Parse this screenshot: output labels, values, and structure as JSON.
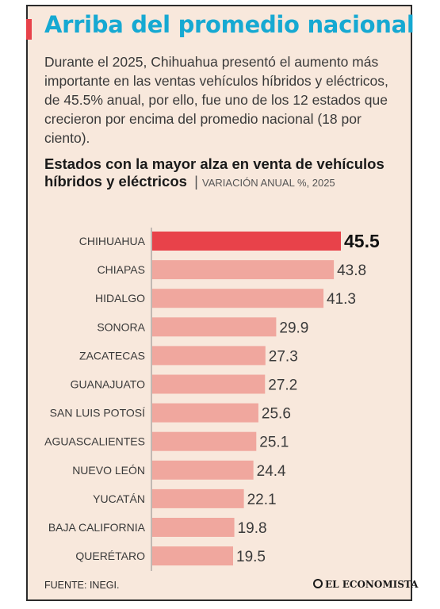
{
  "header": {
    "title": "Arriba del promedio nacional",
    "intro": "Durante el 2025, Chihuahua presentó el aumento más importante en las ventas vehículos híbridos y eléctricos, de 45.5% anual, por ello, fue uno de los 12 estados que crecieron por encima del promedio nacional (18 por ciento)."
  },
  "subtitle": {
    "main": "Estados con la mayor alza en venta de vehículos híbridos y eléctricos",
    "separator": "|",
    "unit": "VARIACIÓN ANUAL %, 2025"
  },
  "footer": {
    "source": "FUENTE: INEGI.",
    "brand": "EL ECONOMISTA"
  },
  "colors": {
    "background": "#f8e8dc",
    "title": "#16a9d2",
    "accent": "#e8424a",
    "bar_highlight": "#e8424a",
    "bar": "#f0a79e"
  },
  "chart_data": {
    "type": "bar",
    "orientation": "horizontal",
    "title": "Estados con la mayor alza en venta de vehículos híbridos y eléctricos",
    "categories": [
      "CHIHUAHUA",
      "CHIAPAS",
      "HIDALGO",
      "SONORA",
      "ZACATECAS",
      "GUANAJUATO",
      "SAN LUIS POTOSÍ",
      "AGUASCALIENTES",
      "NUEVO LEÓN",
      "YUCATÁN",
      "BAJA CALIFORNIA",
      "QUERÉTARO"
    ],
    "values": [
      45.5,
      43.8,
      41.3,
      29.9,
      27.3,
      27.2,
      25.6,
      25.1,
      24.4,
      22.1,
      19.8,
      19.5
    ],
    "value_labels": [
      "45.5",
      "43.8",
      "41.3",
      "29.9",
      "27.3",
      "27.2",
      "25.6",
      "25.1",
      "24.4",
      "22.1",
      "19.8",
      "19.5"
    ],
    "highlight_index": 0,
    "xlim": [
      0,
      45.5
    ],
    "grid": false
  }
}
